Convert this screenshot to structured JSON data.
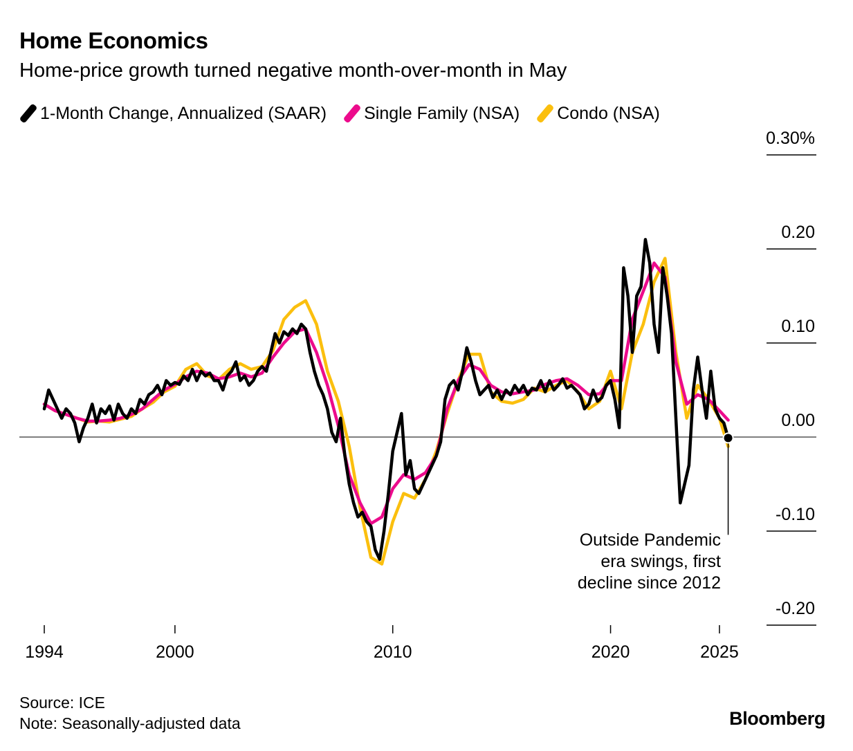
{
  "title": "Home Economics",
  "subtitle": "Home-price growth turned negative month-over-month in May",
  "source": "Source: ICE",
  "note": "Note: Seasonally-adjusted data",
  "brand": "Bloomberg",
  "colors": {
    "saar": "#000000",
    "single_family": "#ec0b8c",
    "condo": "#fbbf0e",
    "zero_line": "#555555"
  },
  "chart_data": {
    "type": "line",
    "title": "Home Economics",
    "subtitle": "Home-price growth turned negative month-over-month in May",
    "ylim": [
      -0.2,
      0.3
    ],
    "y_ticks": [
      0.3,
      0.2,
      0.1,
      0.0,
      -0.1,
      -0.2
    ],
    "y_tick_labels": [
      "0.30%",
      "0.20",
      "0.10",
      "0.00",
      "-0.10",
      "-0.20"
    ],
    "xlim": [
      1994.0,
      2025.7
    ],
    "x_ticks": [
      1994,
      2000,
      2010,
      2020,
      2025
    ],
    "x_tick_labels": [
      "1994",
      "2000",
      "2010",
      "2020",
      "2025"
    ],
    "legend_position": "top-left",
    "grid": false,
    "annotation": {
      "lines": [
        "Outside Pandemic",
        "era swings, first",
        "decline since 2012"
      ],
      "point": [
        2025.4,
        -0.001
      ]
    },
    "series": [
      {
        "name": "Condo (NSA)",
        "color": "#fbbf0e",
        "points": [
          [
            1994.0,
            0.035
          ],
          [
            1994.5,
            0.028
          ],
          [
            1995.0,
            0.024
          ],
          [
            1995.5,
            0.02
          ],
          [
            1996.0,
            0.016
          ],
          [
            1996.5,
            0.017
          ],
          [
            1997.0,
            0.016
          ],
          [
            1997.5,
            0.019
          ],
          [
            1998.0,
            0.022
          ],
          [
            1998.5,
            0.03
          ],
          [
            1999.0,
            0.037
          ],
          [
            1999.5,
            0.048
          ],
          [
            2000.0,
            0.054
          ],
          [
            2000.5,
            0.072
          ],
          [
            2001.0,
            0.078
          ],
          [
            2001.5,
            0.065
          ],
          [
            2002.0,
            0.061
          ],
          [
            2002.5,
            0.072
          ],
          [
            2003.0,
            0.078
          ],
          [
            2003.5,
            0.072
          ],
          [
            2004.0,
            0.075
          ],
          [
            2004.5,
            0.092
          ],
          [
            2005.0,
            0.125
          ],
          [
            2005.5,
            0.138
          ],
          [
            2006.0,
            0.145
          ],
          [
            2006.5,
            0.12
          ],
          [
            2007.0,
            0.07
          ],
          [
            2007.5,
            0.038
          ],
          [
            2008.0,
            -0.01
          ],
          [
            2008.5,
            -0.075
          ],
          [
            2009.0,
            -0.128
          ],
          [
            2009.5,
            -0.135
          ],
          [
            2010.0,
            -0.09
          ],
          [
            2010.5,
            -0.06
          ],
          [
            2011.0,
            -0.065
          ],
          [
            2011.5,
            -0.045
          ],
          [
            2012.0,
            -0.015
          ],
          [
            2012.5,
            0.025
          ],
          [
            2013.0,
            0.06
          ],
          [
            2013.5,
            0.088
          ],
          [
            2014.0,
            0.088
          ],
          [
            2014.5,
            0.048
          ],
          [
            2015.0,
            0.038
          ],
          [
            2015.5,
            0.036
          ],
          [
            2016.0,
            0.04
          ],
          [
            2016.5,
            0.052
          ],
          [
            2017.0,
            0.048
          ],
          [
            2017.5,
            0.055
          ],
          [
            2018.0,
            0.06
          ],
          [
            2018.5,
            0.048
          ],
          [
            2019.0,
            0.03
          ],
          [
            2019.5,
            0.038
          ],
          [
            2020.0,
            0.07
          ],
          [
            2020.5,
            0.03
          ],
          [
            2021.0,
            0.09
          ],
          [
            2021.5,
            0.12
          ],
          [
            2022.0,
            0.165
          ],
          [
            2022.5,
            0.19
          ],
          [
            2023.0,
            0.09
          ],
          [
            2023.5,
            0.02
          ],
          [
            2024.0,
            0.055
          ],
          [
            2024.5,
            0.04
          ],
          [
            2025.0,
            0.02
          ],
          [
            2025.4,
            -0.01
          ]
        ]
      },
      {
        "name": "Single Family (NSA)",
        "color": "#ec0b8c",
        "points": [
          [
            1994.0,
            0.035
          ],
          [
            1994.5,
            0.028
          ],
          [
            1995.0,
            0.024
          ],
          [
            1995.5,
            0.02
          ],
          [
            1996.0,
            0.017
          ],
          [
            1996.5,
            0.017
          ],
          [
            1997.0,
            0.018
          ],
          [
            1997.5,
            0.02
          ],
          [
            1998.0,
            0.024
          ],
          [
            1998.5,
            0.03
          ],
          [
            1999.0,
            0.04
          ],
          [
            1999.5,
            0.05
          ],
          [
            2000.0,
            0.056
          ],
          [
            2000.5,
            0.064
          ],
          [
            2001.0,
            0.07
          ],
          [
            2001.5,
            0.068
          ],
          [
            2002.0,
            0.062
          ],
          [
            2002.5,
            0.064
          ],
          [
            2003.0,
            0.068
          ],
          [
            2003.5,
            0.064
          ],
          [
            2004.0,
            0.068
          ],
          [
            2004.5,
            0.085
          ],
          [
            2005.0,
            0.1
          ],
          [
            2005.5,
            0.112
          ],
          [
            2006.0,
            0.115
          ],
          [
            2006.5,
            0.09
          ],
          [
            2007.0,
            0.055
          ],
          [
            2007.5,
            0.012
          ],
          [
            2008.0,
            -0.04
          ],
          [
            2008.5,
            -0.07
          ],
          [
            2009.0,
            -0.092
          ],
          [
            2009.5,
            -0.085
          ],
          [
            2010.0,
            -0.055
          ],
          [
            2010.5,
            -0.04
          ],
          [
            2011.0,
            -0.045
          ],
          [
            2011.5,
            -0.038
          ],
          [
            2012.0,
            -0.02
          ],
          [
            2012.5,
            0.03
          ],
          [
            2013.0,
            0.06
          ],
          [
            2013.5,
            0.077
          ],
          [
            2014.0,
            0.072
          ],
          [
            2014.5,
            0.055
          ],
          [
            2015.0,
            0.048
          ],
          [
            2015.5,
            0.046
          ],
          [
            2016.0,
            0.048
          ],
          [
            2016.5,
            0.05
          ],
          [
            2017.0,
            0.056
          ],
          [
            2017.5,
            0.06
          ],
          [
            2018.0,
            0.062
          ],
          [
            2018.5,
            0.055
          ],
          [
            2019.0,
            0.045
          ],
          [
            2019.5,
            0.046
          ],
          [
            2020.0,
            0.06
          ],
          [
            2020.5,
            0.06
          ],
          [
            2021.0,
            0.125
          ],
          [
            2021.5,
            0.155
          ],
          [
            2022.0,
            0.185
          ],
          [
            2022.5,
            0.17
          ],
          [
            2023.0,
            0.08
          ],
          [
            2023.5,
            0.035
          ],
          [
            2024.0,
            0.045
          ],
          [
            2024.5,
            0.04
          ],
          [
            2025.0,
            0.028
          ],
          [
            2025.4,
            0.018
          ]
        ]
      },
      {
        "name": "1-Month Change, Annualized (SAAR)",
        "color": "#000000",
        "points": [
          [
            1994.0,
            0.03
          ],
          [
            1994.2,
            0.05
          ],
          [
            1994.4,
            0.04
          ],
          [
            1994.6,
            0.03
          ],
          [
            1994.8,
            0.02
          ],
          [
            1995.0,
            0.03
          ],
          [
            1995.2,
            0.025
          ],
          [
            1995.4,
            0.015
          ],
          [
            1995.6,
            -0.005
          ],
          [
            1995.8,
            0.01
          ],
          [
            1996.0,
            0.02
          ],
          [
            1996.2,
            0.035
          ],
          [
            1996.4,
            0.015
          ],
          [
            1996.6,
            0.03
          ],
          [
            1996.8,
            0.025
          ],
          [
            1997.0,
            0.033
          ],
          [
            1997.2,
            0.018
          ],
          [
            1997.4,
            0.035
          ],
          [
            1997.6,
            0.025
          ],
          [
            1997.8,
            0.02
          ],
          [
            1998.0,
            0.03
          ],
          [
            1998.2,
            0.025
          ],
          [
            1998.4,
            0.04
          ],
          [
            1998.6,
            0.035
          ],
          [
            1998.8,
            0.045
          ],
          [
            1999.0,
            0.048
          ],
          [
            1999.2,
            0.055
          ],
          [
            1999.4,
            0.045
          ],
          [
            1999.6,
            0.06
          ],
          [
            1999.8,
            0.055
          ],
          [
            2000.0,
            0.058
          ],
          [
            2000.2,
            0.056
          ],
          [
            2000.4,
            0.065
          ],
          [
            2000.6,
            0.06
          ],
          [
            2000.8,
            0.072
          ],
          [
            2001.0,
            0.06
          ],
          [
            2001.2,
            0.07
          ],
          [
            2001.4,
            0.065
          ],
          [
            2001.6,
            0.068
          ],
          [
            2001.8,
            0.06
          ],
          [
            2002.0,
            0.06
          ],
          [
            2002.2,
            0.05
          ],
          [
            2002.4,
            0.065
          ],
          [
            2002.6,
            0.07
          ],
          [
            2002.8,
            0.08
          ],
          [
            2003.0,
            0.06
          ],
          [
            2003.2,
            0.065
          ],
          [
            2003.4,
            0.055
          ],
          [
            2003.6,
            0.06
          ],
          [
            2003.8,
            0.07
          ],
          [
            2004.0,
            0.075
          ],
          [
            2004.2,
            0.07
          ],
          [
            2004.4,
            0.09
          ],
          [
            2004.6,
            0.11
          ],
          [
            2004.8,
            0.1
          ],
          [
            2005.0,
            0.112
          ],
          [
            2005.2,
            0.108
          ],
          [
            2005.4,
            0.115
          ],
          [
            2005.6,
            0.11
          ],
          [
            2005.8,
            0.12
          ],
          [
            2006.0,
            0.115
          ],
          [
            2006.2,
            0.09
          ],
          [
            2006.4,
            0.07
          ],
          [
            2006.6,
            0.055
          ],
          [
            2006.8,
            0.045
          ],
          [
            2007.0,
            0.03
          ],
          [
            2007.2,
            0.005
          ],
          [
            2007.4,
            -0.005
          ],
          [
            2007.6,
            0.02
          ],
          [
            2007.8,
            -0.02
          ],
          [
            2008.0,
            -0.05
          ],
          [
            2008.2,
            -0.07
          ],
          [
            2008.4,
            -0.085
          ],
          [
            2008.6,
            -0.08
          ],
          [
            2008.8,
            -0.09
          ],
          [
            2009.0,
            -0.095
          ],
          [
            2009.2,
            -0.12
          ],
          [
            2009.4,
            -0.13
          ],
          [
            2009.6,
            -0.1
          ],
          [
            2009.8,
            -0.06
          ],
          [
            2010.0,
            -0.015
          ],
          [
            2010.2,
            0.005
          ],
          [
            2010.4,
            0.025
          ],
          [
            2010.6,
            -0.04
          ],
          [
            2010.8,
            -0.025
          ],
          [
            2011.0,
            -0.055
          ],
          [
            2011.2,
            -0.06
          ],
          [
            2011.4,
            -0.05
          ],
          [
            2011.6,
            -0.04
          ],
          [
            2011.8,
            -0.03
          ],
          [
            2012.0,
            -0.02
          ],
          [
            2012.2,
            -0.005
          ],
          [
            2012.4,
            0.04
          ],
          [
            2012.6,
            0.055
          ],
          [
            2012.8,
            0.06
          ],
          [
            2013.0,
            0.05
          ],
          [
            2013.2,
            0.07
          ],
          [
            2013.4,
            0.095
          ],
          [
            2013.6,
            0.08
          ],
          [
            2013.8,
            0.06
          ],
          [
            2014.0,
            0.045
          ],
          [
            2014.2,
            0.05
          ],
          [
            2014.4,
            0.055
          ],
          [
            2014.6,
            0.042
          ],
          [
            2014.8,
            0.05
          ],
          [
            2015.0,
            0.04
          ],
          [
            2015.2,
            0.05
          ],
          [
            2015.4,
            0.045
          ],
          [
            2015.6,
            0.055
          ],
          [
            2015.8,
            0.048
          ],
          [
            2016.0,
            0.055
          ],
          [
            2016.2,
            0.045
          ],
          [
            2016.4,
            0.052
          ],
          [
            2016.6,
            0.05
          ],
          [
            2016.8,
            0.06
          ],
          [
            2017.0,
            0.048
          ],
          [
            2017.2,
            0.06
          ],
          [
            2017.4,
            0.05
          ],
          [
            2017.6,
            0.055
          ],
          [
            2017.8,
            0.062
          ],
          [
            2018.0,
            0.052
          ],
          [
            2018.2,
            0.055
          ],
          [
            2018.4,
            0.05
          ],
          [
            2018.6,
            0.045
          ],
          [
            2018.8,
            0.03
          ],
          [
            2019.0,
            0.035
          ],
          [
            2019.2,
            0.05
          ],
          [
            2019.4,
            0.038
          ],
          [
            2019.6,
            0.042
          ],
          [
            2019.8,
            0.055
          ],
          [
            2020.0,
            0.06
          ],
          [
            2020.2,
            0.04
          ],
          [
            2020.4,
            0.01
          ],
          [
            2020.6,
            0.18
          ],
          [
            2020.8,
            0.15
          ],
          [
            2021.0,
            0.09
          ],
          [
            2021.2,
            0.15
          ],
          [
            2021.4,
            0.16
          ],
          [
            2021.6,
            0.21
          ],
          [
            2021.8,
            0.185
          ],
          [
            2022.0,
            0.12
          ],
          [
            2022.2,
            0.09
          ],
          [
            2022.4,
            0.18
          ],
          [
            2022.6,
            0.15
          ],
          [
            2022.8,
            0.11
          ],
          [
            2023.0,
            0.02
          ],
          [
            2023.2,
            -0.07
          ],
          [
            2023.4,
            -0.05
          ],
          [
            2023.6,
            -0.03
          ],
          [
            2023.8,
            0.05
          ],
          [
            2024.0,
            0.085
          ],
          [
            2024.2,
            0.05
          ],
          [
            2024.4,
            0.02
          ],
          [
            2024.6,
            0.07
          ],
          [
            2024.8,
            0.03
          ],
          [
            2025.0,
            0.02
          ],
          [
            2025.2,
            0.015
          ],
          [
            2025.4,
            -0.001
          ]
        ]
      }
    ]
  }
}
